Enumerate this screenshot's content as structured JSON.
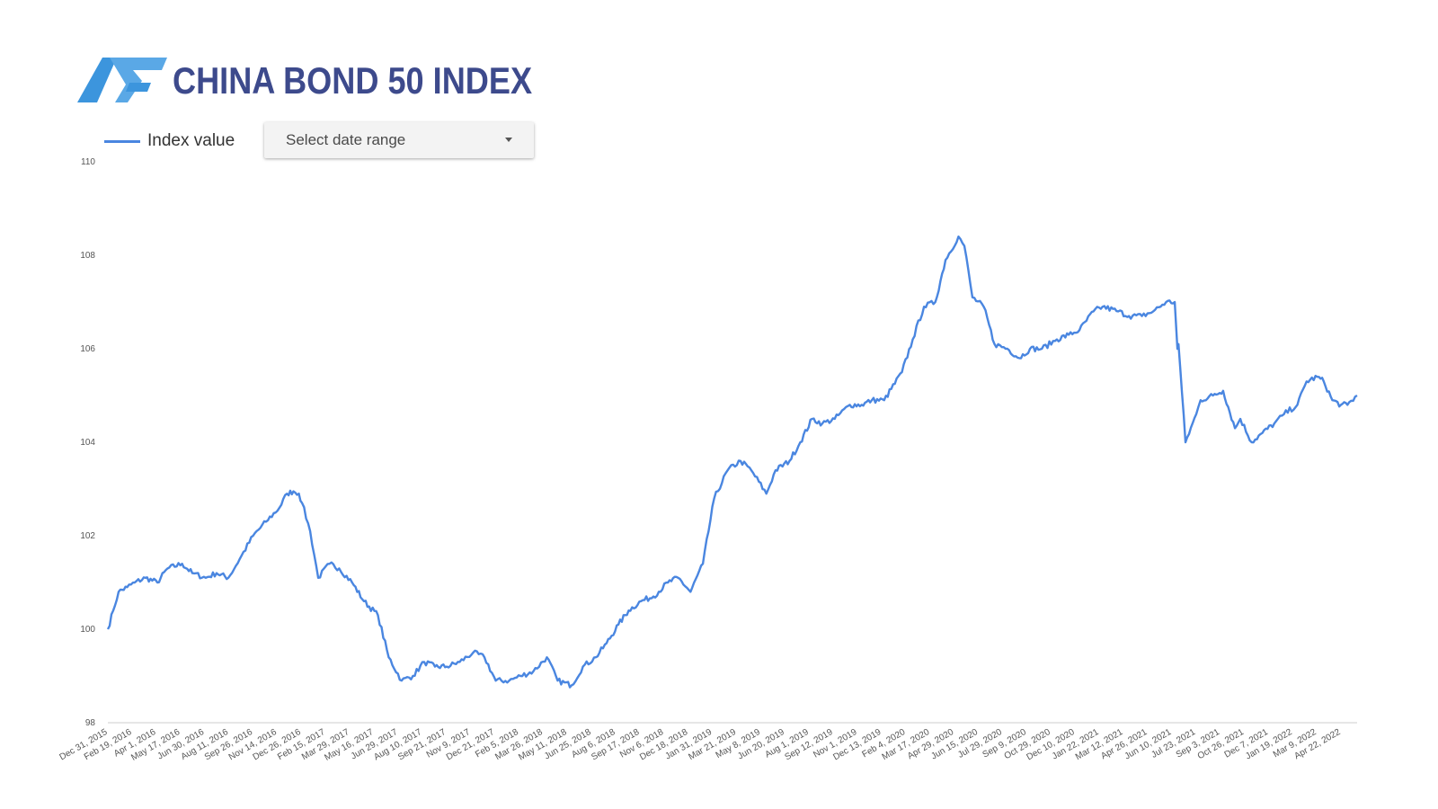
{
  "header": {
    "title": "CHINA BOND 50 INDEX",
    "logo_colors": [
      "#3c95dd",
      "#5aa8e6"
    ]
  },
  "legend": {
    "label": "Index value",
    "color": "#4a86e0"
  },
  "date_range": {
    "placeholder": "Select date range",
    "icon": "caret-down-icon"
  },
  "chart_data": {
    "type": "line",
    "ylim": [
      98,
      110
    ],
    "yticks": [
      "98",
      "100",
      "102",
      "104",
      "106",
      "108",
      "110"
    ],
    "grid": false,
    "legend_position": "top-left",
    "series": [
      {
        "name": "Index value",
        "color": "#4a86e0",
        "x": [
          "2015-12-31",
          "2016-01-10",
          "2016-01-20",
          "2016-02-05",
          "2016-02-19",
          "2016-03-10",
          "2016-04-01",
          "2016-04-20",
          "2016-05-17",
          "2016-06-05",
          "2016-06-30",
          "2016-07-20",
          "2016-08-11",
          "2016-09-01",
          "2016-09-26",
          "2016-10-20",
          "2016-11-14",
          "2016-11-28",
          "2016-12-10",
          "2016-12-20",
          "2016-12-26",
          "2017-01-10",
          "2017-01-25",
          "2017-02-15",
          "2017-03-05",
          "2017-03-29",
          "2017-04-20",
          "2017-05-16",
          "2017-06-05",
          "2017-06-29",
          "2017-07-20",
          "2017-08-10",
          "2017-08-30",
          "2017-09-21",
          "2017-10-15",
          "2017-11-09",
          "2017-11-30",
          "2017-12-21",
          "2018-01-15",
          "2018-02-05",
          "2018-03-01",
          "2018-03-26",
          "2018-04-15",
          "2018-05-11",
          "2018-06-01",
          "2018-06-25",
          "2018-07-15",
          "2018-08-06",
          "2018-08-25",
          "2018-09-17",
          "2018-10-10",
          "2018-11-06",
          "2018-11-25",
          "2018-12-18",
          "2019-01-10",
          "2019-01-31",
          "2019-02-25",
          "2019-03-21",
          "2019-04-10",
          "2019-05-08",
          "2019-05-25",
          "2019-06-20",
          "2019-07-10",
          "2019-08-01",
          "2019-08-20",
          "2019-09-12",
          "2019-10-10",
          "2019-11-01",
          "2019-11-20",
          "2019-12-13",
          "2020-01-15",
          "2020-02-04",
          "2020-02-25",
          "2020-03-17",
          "2020-04-05",
          "2020-04-29",
          "2020-05-10",
          "2020-05-25",
          "2020-06-15",
          "2020-07-05",
          "2020-07-29",
          "2020-08-20",
          "2020-09-09",
          "2020-10-01",
          "2020-10-29",
          "2020-11-20",
          "2020-12-10",
          "2021-01-05",
          "2021-01-22",
          "2021-02-20",
          "2021-03-12",
          "2021-04-05",
          "2021-04-26",
          "2021-05-20",
          "2021-06-05",
          "2021-06-10",
          "2021-06-12",
          "2021-06-25",
          "2021-07-15",
          "2021-07-23",
          "2021-08-15",
          "2021-09-03",
          "2021-09-25",
          "2021-10-05",
          "2021-10-26",
          "2021-11-15",
          "2021-12-07",
          "2021-12-25",
          "2022-01-19",
          "2022-02-05",
          "2022-02-25",
          "2022-03-09",
          "2022-03-25",
          "2022-04-10",
          "2022-04-22",
          "2022-05-10"
        ],
        "values": [
          100.0,
          100.4,
          100.8,
          100.9,
          101.0,
          101.1,
          101.0,
          101.3,
          101.4,
          101.2,
          101.1,
          101.2,
          101.1,
          101.5,
          102.0,
          102.3,
          102.6,
          102.9,
          102.95,
          102.9,
          102.7,
          102.1,
          101.1,
          101.4,
          101.3,
          101.0,
          100.6,
          100.3,
          99.4,
          98.9,
          99.0,
          99.3,
          99.2,
          99.2,
          99.3,
          99.5,
          99.4,
          98.9,
          98.9,
          99.0,
          99.1,
          99.4,
          98.9,
          98.8,
          99.2,
          99.4,
          99.7,
          100.1,
          100.4,
          100.6,
          100.7,
          101.0,
          101.1,
          100.8,
          101.4,
          102.8,
          103.4,
          103.6,
          103.4,
          102.9,
          103.4,
          103.6,
          104.0,
          104.5,
          104.4,
          104.5,
          104.8,
          104.8,
          104.9,
          104.9,
          105.5,
          106.2,
          106.9,
          107.0,
          107.9,
          108.4,
          108.2,
          107.1,
          106.9,
          106.1,
          106.0,
          105.8,
          106.0,
          106.0,
          106.2,
          106.3,
          106.4,
          106.8,
          106.9,
          106.8,
          106.7,
          106.7,
          106.8,
          107.0,
          107.0,
          106.0,
          106.1,
          104.0,
          104.6,
          104.9,
          105.0,
          105.1,
          104.3,
          104.5,
          104.0,
          104.2,
          104.4,
          104.6,
          104.8,
          105.3,
          105.4,
          105.3,
          104.9,
          104.8,
          104.8,
          105.0
        ]
      }
    ],
    "xtick_labels": [
      "Dec 31, 2015",
      "Feb 19, 2016",
      "Apr 1, 2016",
      "May 17, 2016",
      "Jun 30, 2016",
      "Aug 11, 2016",
      "Sep 26, 2016",
      "Nov 14, 2016",
      "Dec 26, 2016",
      "Feb 15, 2017",
      "Mar 29, 2017",
      "May 16, 2017",
      "Jun 29, 2017",
      "Aug 10, 2017",
      "Sep 21, 2017",
      "Nov 9, 2017",
      "Dec 21, 2017",
      "Feb 5, 2018",
      "Mar 26, 2018",
      "May 11, 2018",
      "Jun 25, 2018",
      "Aug 6, 2018",
      "Sep 17, 2018",
      "Nov 6, 2018",
      "Dec 18, 2018",
      "Jan 31, 2019",
      "Mar 21, 2019",
      "May 8, 2019",
      "Jun 20, 2019",
      "Aug 1, 2019",
      "Sep 12, 2019",
      "Nov 1, 2019",
      "Dec 13, 2019",
      "Feb 4, 2020",
      "Mar 17, 2020",
      "Apr 29, 2020",
      "Jun 15, 2020",
      "Jul 29, 2020",
      "Sep 9, 2020",
      "Oct 29, 2020",
      "Dec 10, 2020",
      "Jan 22, 2021",
      "Mar 12, 2021",
      "Apr 26, 2021",
      "Jun 10, 2021",
      "Jul 23, 2021",
      "Sep 3, 2021",
      "Oct 26, 2021",
      "Dec 7, 2021",
      "Jan 19, 2022",
      "Mar 9, 2022",
      "Apr 22, 2022"
    ]
  }
}
